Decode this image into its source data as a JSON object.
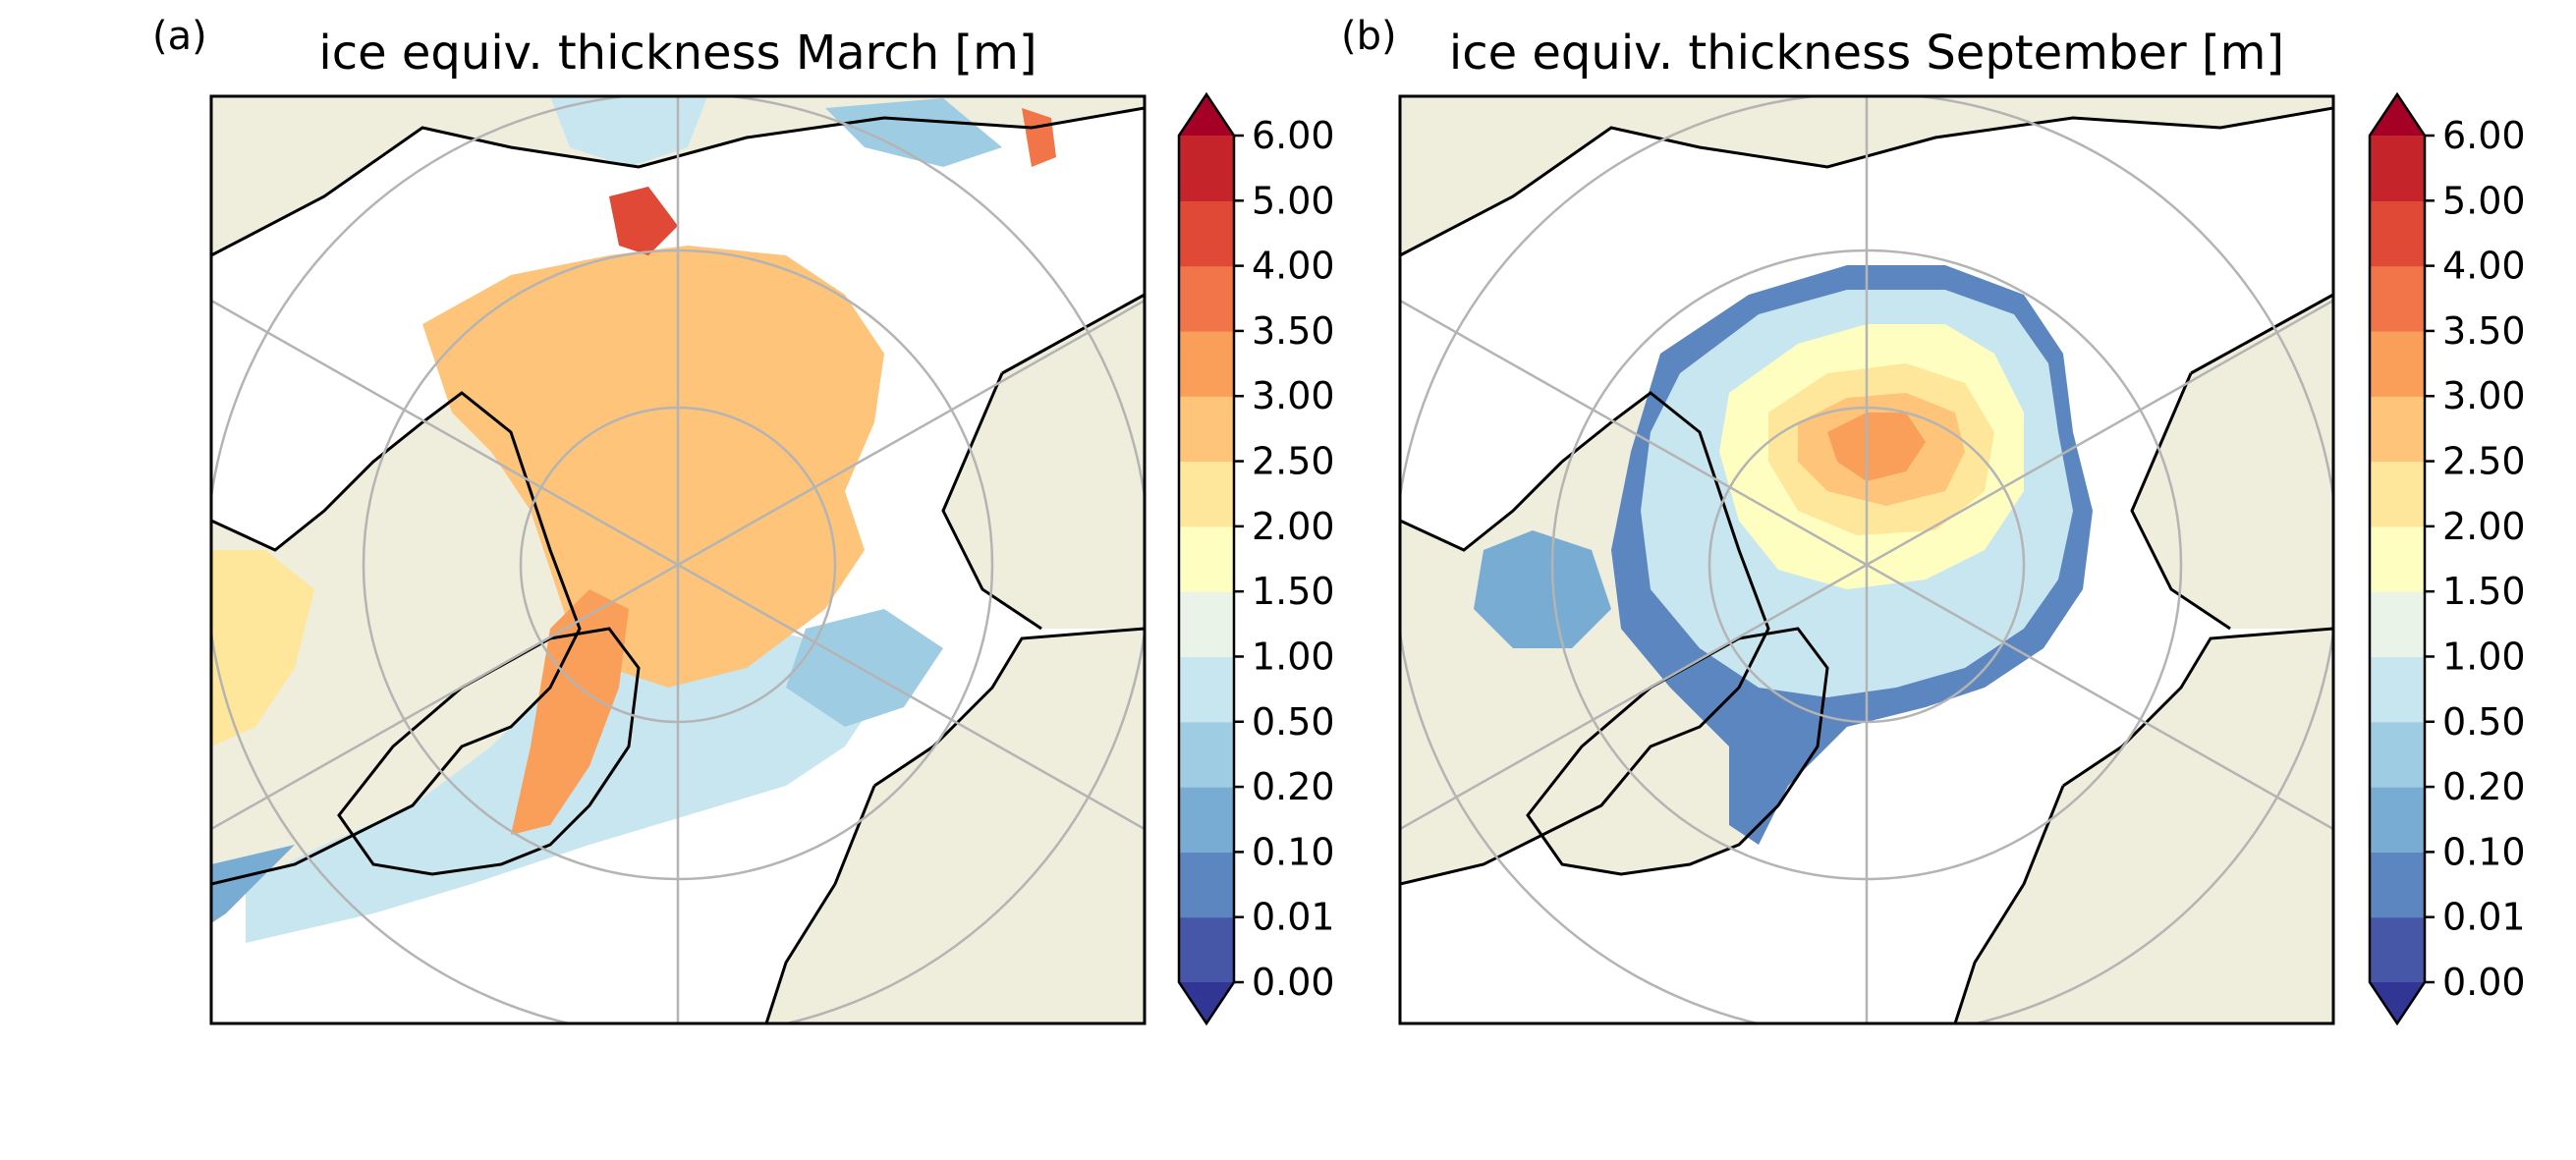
{
  "panels": [
    {
      "id": "a",
      "panel_label": "(a)",
      "title": "ice equiv. thickness March [m]",
      "month": "March"
    },
    {
      "id": "b",
      "panel_label": "(b)",
      "title": "ice equiv. thickness September [m]",
      "month": "September"
    }
  ],
  "colorbar": {
    "ticks": [
      "0.00",
      "0.01",
      "0.10",
      "0.20",
      "0.50",
      "1.00",
      "1.50",
      "2.00",
      "2.50",
      "3.00",
      "3.50",
      "4.00",
      "5.00",
      "6.00"
    ],
    "extend": "both",
    "colors": [
      "#4757a8",
      "#5b86c0",
      "#78acd2",
      "#9ecde3",
      "#c8e6f0",
      "#e9f3e8",
      "#fefec1",
      "#fee79a",
      "#fdc47a",
      "#f99f5a",
      "#f17549",
      "#df4935",
      "#c4242a"
    ],
    "under_color": "#313695",
    "over_color": "#a50026"
  },
  "map": {
    "projection": "north-polar-stereographic",
    "land_color": "#efeddc",
    "gridline_color": "#b4b4b4",
    "coastline_color": "#000000"
  }
}
